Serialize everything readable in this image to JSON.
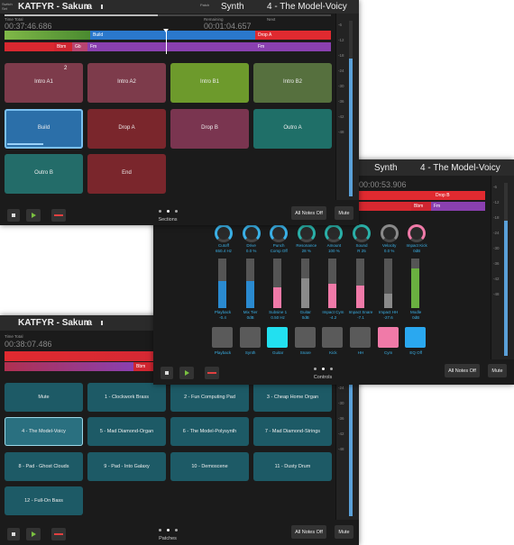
{
  "sections_screen": {
    "set_label": "Switch Set",
    "song": "KATFYR - Sakura",
    "patch_label": "Patch",
    "instrument": "Synth",
    "patch": "4 - The Model-Voicy",
    "time_total_label": "Time Total",
    "time_total": "00:37:46.686",
    "remaining_label": "Remaining",
    "remaining": "00:01:04.657",
    "next_label": "Next",
    "arrangement": {
      "top": [
        "Build",
        "Drop A"
      ],
      "bottom": [
        "Bbm",
        "Gb",
        "Fm",
        "Fm"
      ]
    },
    "pads": [
      {
        "label": "Intro A1",
        "badge": "2",
        "color": "#7d3b4b"
      },
      {
        "label": "Intro A2",
        "color": "#7d3b4b"
      },
      {
        "label": "Intro B1",
        "color": "#6d9a2c"
      },
      {
        "label": "Intro B2",
        "color": "#56703e"
      },
      {
        "label": "Build",
        "color": "#2b6fa9"
      },
      {
        "label": "Drop A",
        "color": "#7a262c"
      },
      {
        "label": "Drop B",
        "color": "#7a3550"
      },
      {
        "label": "Outro A",
        "color": "#1f6f68"
      },
      {
        "label": "Outro B",
        "color": "#236c69"
      },
      {
        "label": "End",
        "color": "#7a262c"
      }
    ],
    "page_label": "Sections",
    "all_notes_off": "All Notes Off",
    "mute": "Mute",
    "meter_ticks": [
      "-6",
      "-12",
      "-18",
      "-24",
      "-30",
      "-36",
      "-42",
      "-48"
    ]
  },
  "controls_screen": {
    "instrument": "Synth",
    "patch": "4 - The Model-Voicy",
    "time": "00:00:53.906",
    "arrangement": {
      "top": [
        "Drop B"
      ],
      "bottom": [
        "Bbm",
        "Fm"
      ]
    },
    "knobs": [
      {
        "label": "Cutoff",
        "value": "650.4 Hz",
        "color": "#3ab0e6"
      },
      {
        "label": "Drive",
        "value": "0.0 %",
        "color": "#3ab0e6"
      },
      {
        "label": "Punch",
        "value": "Comp Off",
        "color": "#3ab0e6"
      },
      {
        "label": "Resonance",
        "value": "28 %",
        "color": "#2ab0a8"
      },
      {
        "label": "Amount",
        "value": "100 %",
        "color": "#2ab0a8"
      },
      {
        "label": "Sound",
        "value": "R 25",
        "color": "#2ab0a8"
      },
      {
        "label": "Velocity",
        "value": "0.0 %",
        "color": "#8a8a8a"
      },
      {
        "label": "Impact Kick",
        "value": "0dB",
        "color": "#f07aa8"
      }
    ],
    "faders": [
      {
        "label": "Playback",
        "value": "-0.4",
        "color": "#2a8ad0"
      },
      {
        "label": "Mix Tier",
        "value": "0dB",
        "color": "#2a8ad0"
      },
      {
        "label": "Subsine 1",
        "value": "0.50 Hz",
        "color": "#f07aa8"
      },
      {
        "label": "Guitar",
        "value": "0dB",
        "color": "#8a8a8a"
      },
      {
        "label": "Impact Cym",
        "value": "-4.2",
        "color": "#f07aa8"
      },
      {
        "label": "Impact Snare",
        "value": "-7.1",
        "color": "#f07aa8"
      },
      {
        "label": "Impact HH",
        "value": "-27.6",
        "color": "#8a8a8a"
      },
      {
        "label": "Modle",
        "value": "0dB",
        "color": "#6ab040"
      }
    ],
    "buttons": [
      {
        "label": "Playback",
        "color": "#5a5a5a"
      },
      {
        "label": "Synth",
        "color": "#5a5a5a"
      },
      {
        "label": "Guitar",
        "color": "#22e0f0"
      },
      {
        "label": "Snare",
        "color": "#5a5a5a"
      },
      {
        "label": "Kick",
        "color": "#5a5a5a"
      },
      {
        "label": "HH",
        "color": "#5a5a5a"
      },
      {
        "label": "Cym",
        "color": "#f07aa8"
      },
      {
        "label": "EQ Off",
        "color": "#2aa8f0"
      }
    ],
    "page_label": "Controls",
    "all_notes_off": "All Notes Off",
    "mute": "Mute",
    "meter_ticks": [
      "-6",
      "-12",
      "-18",
      "-24",
      "-30",
      "-36",
      "-42",
      "-48"
    ]
  },
  "patches_screen": {
    "song": "KATFYR - Sakura",
    "time_total_label": "Time Total",
    "time_total": "00:38:07.486",
    "arrangement": {
      "bottom": [
        "Bbm"
      ]
    },
    "patches": [
      "Mute",
      "1 - Clockwork Brass",
      "2 - Fun Computing Pad",
      "3 - Cheap Home Organ",
      "4 - The Model-Voicy",
      "5 - Mad Diamond-Organ",
      "6 - The Model-Polysynth",
      "7 - Mad Diamond-Strings",
      "8 - Pad - Ghost Clouds",
      "9 - Pad - Into Galaxy",
      "10 - Demoscene",
      "11 - Dusty Drum",
      "12 - Full-On Bass"
    ],
    "page_label": "Patches",
    "all_notes_off": "All Notes Off",
    "mute": "Mute",
    "meter_ticks": [
      "-6",
      "-12",
      "-18",
      "-24",
      "-30",
      "-36",
      "-42",
      "-48"
    ]
  }
}
